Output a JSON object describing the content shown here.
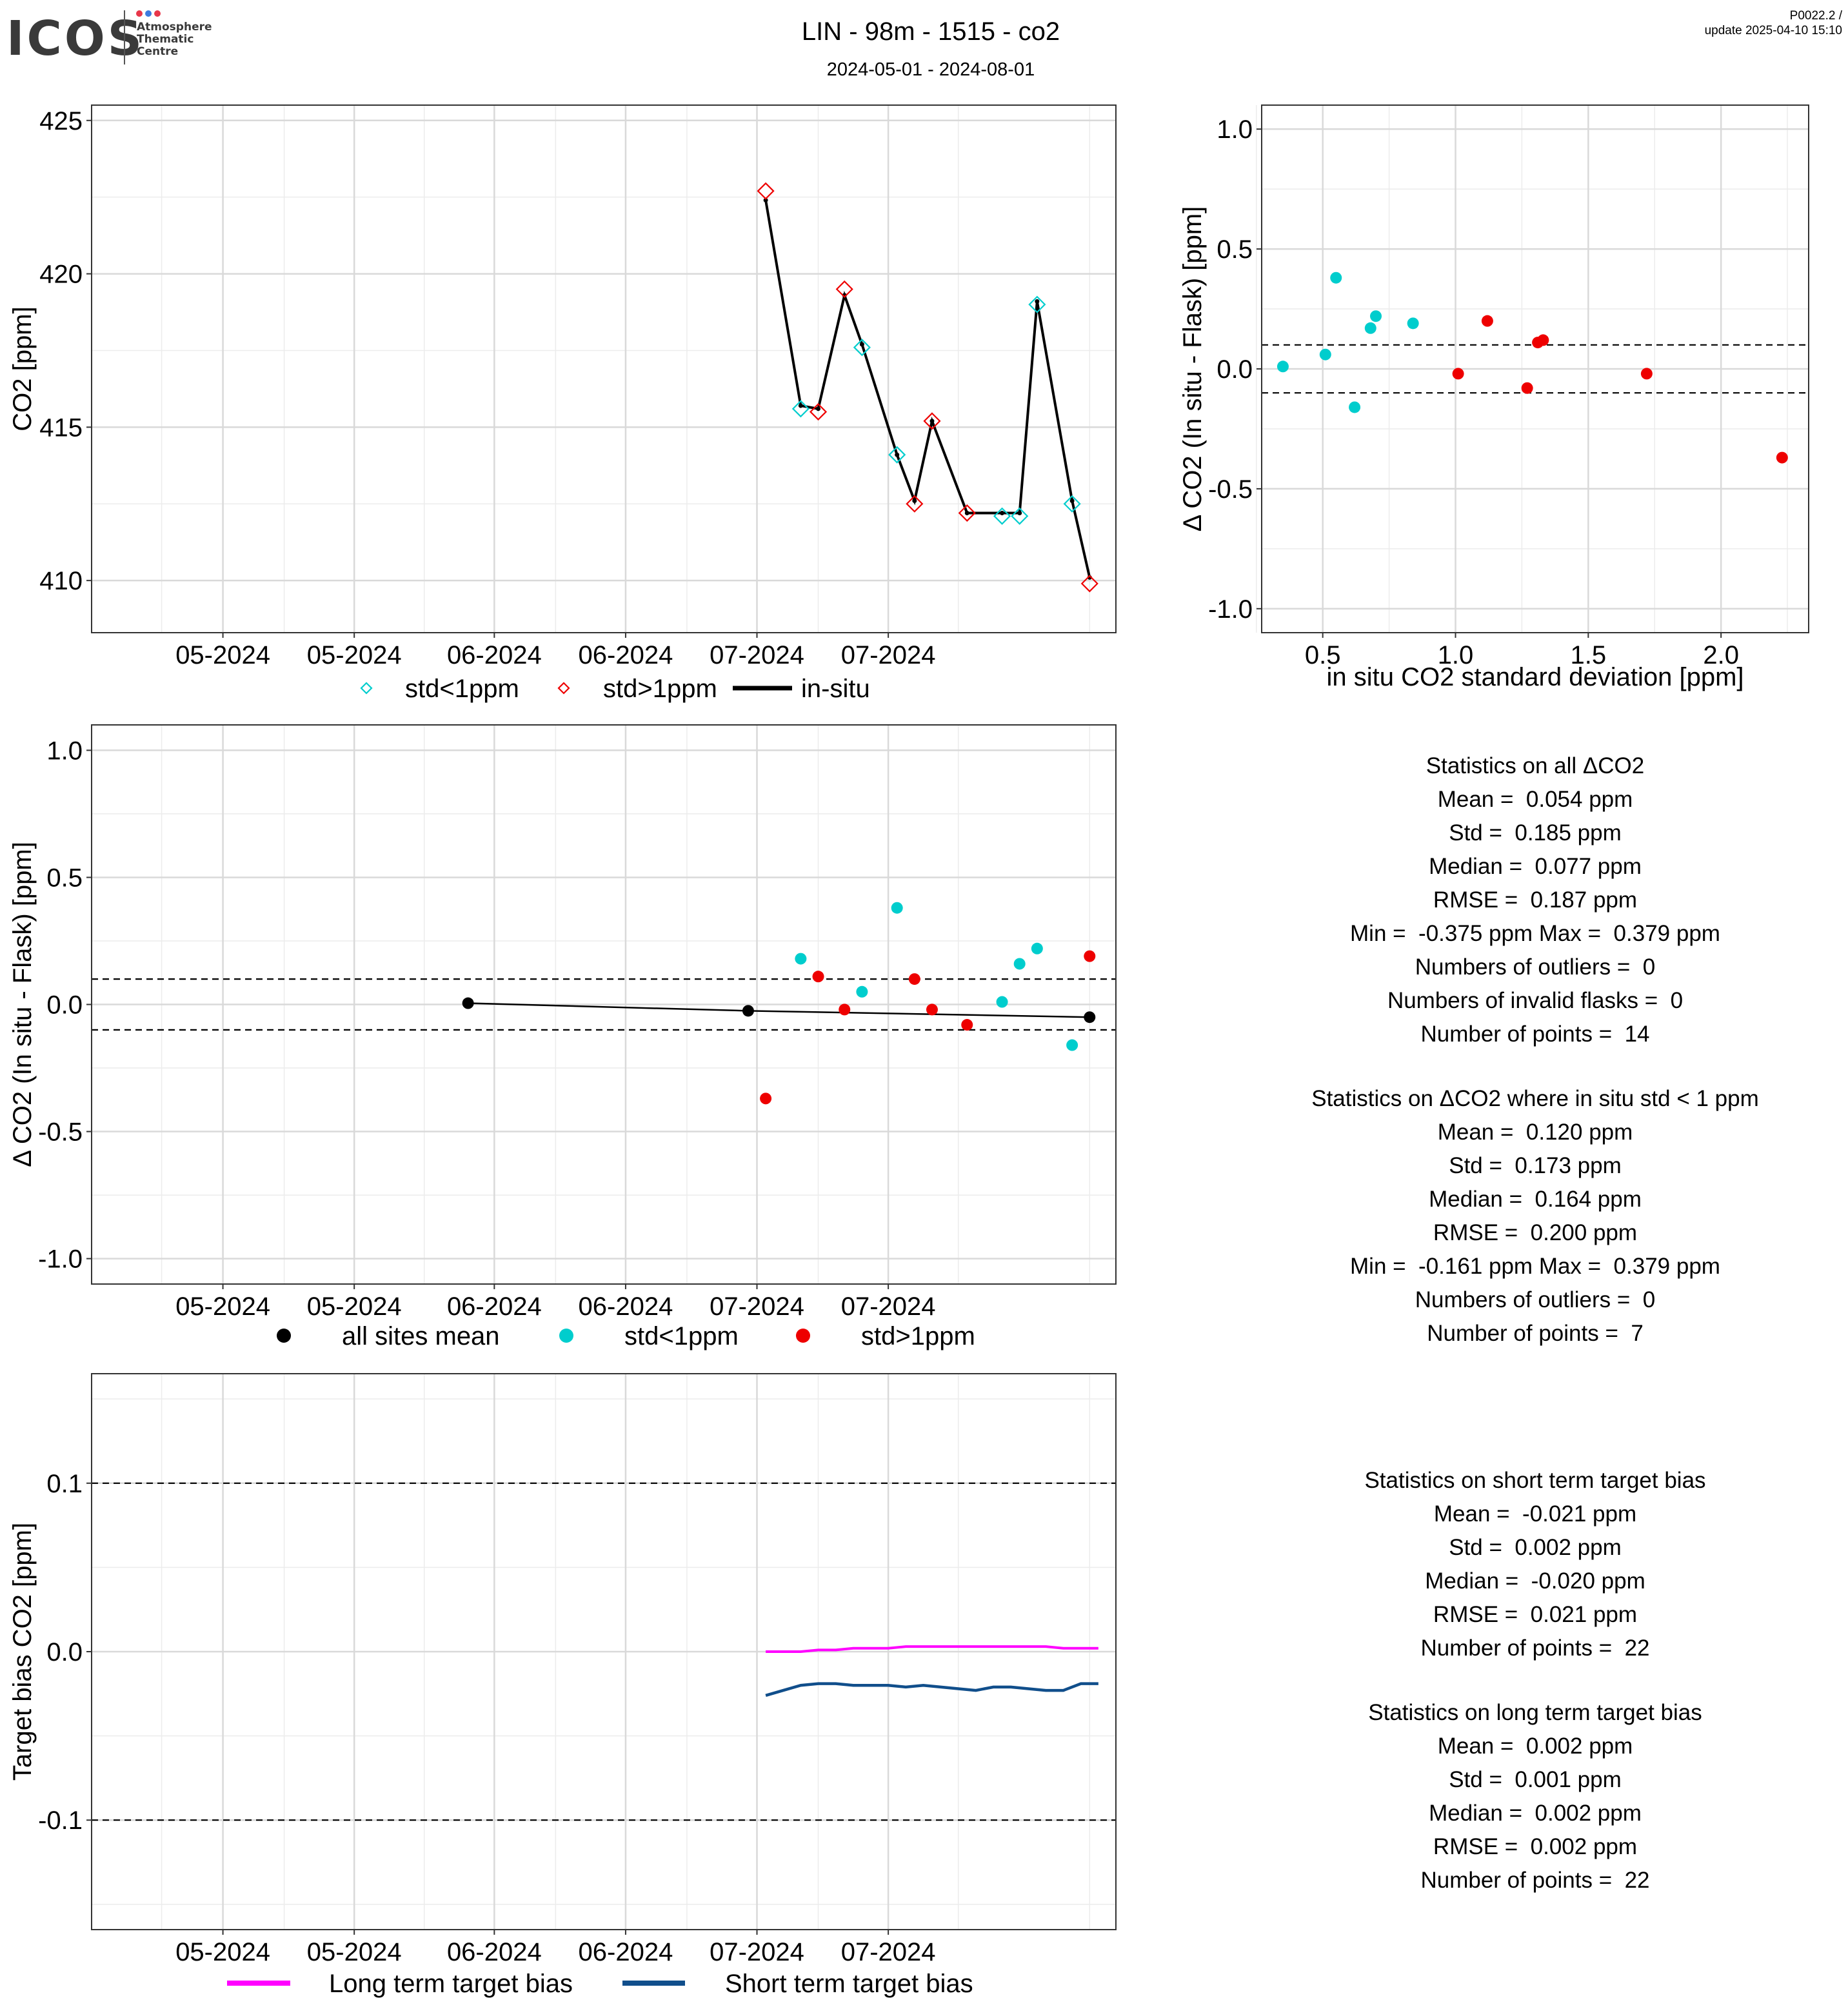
{
  "header": {
    "logo_text": "ICOS",
    "logo_sub": [
      "Atmosphere",
      "Thematic",
      "Centre"
    ],
    "logo_dot_colors": [
      "#e8374a",
      "#3d7be0",
      "#e8374a"
    ],
    "title": "LIN - 98m - 1515 - co2",
    "subtitle": "2024-05-01 - 2024-08-01",
    "version": "P0022.2 /",
    "update": "update  2025-04-10 15:10"
  },
  "colors": {
    "cyan": "#00CDCD",
    "red": "#EE0000",
    "black": "#000000",
    "magenta": "#FF00FF",
    "navy": "#104E8B",
    "grid_major": "#d9d9d9",
    "grid_minor": "#ececec"
  },
  "time_axis": {
    "tick_labels": [
      "05-2024",
      "05-2024",
      "06-2024",
      "06-2024",
      "07-2024",
      "07-2024"
    ]
  },
  "chart_data": [
    {
      "id": "co2-timeseries",
      "type": "line",
      "xlabel": "",
      "ylabel": "CO2 [ppm]",
      "ylim": [
        408.3,
        425.5
      ],
      "y_ticks": [
        410,
        415,
        420,
        425
      ],
      "y_tick_labels": [
        "410",
        "415",
        "420",
        "425"
      ],
      "grid": true,
      "legend": [
        "std<1ppm",
        "std>1ppm",
        "in-situ"
      ],
      "legend_position": "bottom",
      "series": [
        {
          "name": "in-situ",
          "x": [
            "2024-07-02",
            "2024-07-06",
            "2024-07-08",
            "2024-07-11",
            "2024-07-13",
            "2024-07-17",
            "2024-07-19",
            "2024-07-21",
            "2024-07-25",
            "2024-07-29",
            "2024-07-31",
            "2024-08-02",
            "2024-08-06",
            "2024-08-08"
          ],
          "values": [
            422.4,
            415.7,
            415.6,
            419.3,
            417.7,
            414.1,
            412.6,
            415.2,
            412.2,
            412.2,
            412.2,
            419.1,
            412.6,
            410.1
          ]
        },
        {
          "name": "std<1ppm",
          "x": [
            "2024-07-06",
            "2024-07-13",
            "2024-07-17",
            "2024-07-29",
            "2024-07-31",
            "2024-08-02",
            "2024-08-06"
          ],
          "values": [
            415.6,
            417.6,
            414.1,
            412.1,
            412.1,
            419.0,
            412.5
          ]
        },
        {
          "name": "std>1ppm",
          "x": [
            "2024-07-02",
            "2024-07-08",
            "2024-07-11",
            "2024-07-19",
            "2024-07-21",
            "2024-07-25",
            "2024-08-08"
          ],
          "values": [
            422.7,
            415.5,
            419.5,
            412.5,
            415.2,
            412.2,
            409.9
          ]
        }
      ]
    },
    {
      "id": "delta-vs-std",
      "type": "scatter",
      "xlabel": "in situ CO2 standard deviation [ppm]",
      "ylabel": "Δ CO2 (In situ - Flask) [ppm]",
      "xlim": [
        0.27,
        2.33
      ],
      "ylim": [
        -1.1,
        1.1
      ],
      "x_ticks": [
        0.5,
        1.0,
        1.5,
        2.0
      ],
      "x_tick_labels": [
        "0.5",
        "1.0",
        "1.5",
        "2.0"
      ],
      "y_ticks": [
        -1.0,
        -0.5,
        0.0,
        0.5,
        1.0
      ],
      "y_tick_labels": [
        "-1.0",
        "-0.5",
        "0.0",
        "0.5",
        "1.0"
      ],
      "reference_lines": [
        0.1,
        -0.1
      ],
      "grid": true,
      "series": [
        {
          "name": "std<1ppm",
          "x": [
            0.35,
            0.51,
            0.55,
            0.62,
            0.68,
            0.7,
            0.84
          ],
          "values": [
            0.01,
            0.06,
            0.38,
            -0.16,
            0.17,
            0.22,
            0.19
          ]
        },
        {
          "name": "std>1ppm",
          "x": [
            1.01,
            1.12,
            1.27,
            1.31,
            1.33,
            1.72,
            2.23
          ],
          "values": [
            -0.02,
            0.2,
            -0.08,
            0.11,
            0.12,
            -0.02,
            -0.37
          ]
        }
      ]
    },
    {
      "id": "delta-timeseries",
      "type": "scatter",
      "xlabel": "",
      "ylabel": "Δ CO2 (In situ - Flask) [ppm]",
      "ylim": [
        -1.1,
        1.1
      ],
      "y_ticks": [
        -1.0,
        -0.5,
        0.0,
        0.5,
        1.0
      ],
      "y_tick_labels": [
        "-1.0",
        "-0.5",
        "0.0",
        "0.5",
        "1.0"
      ],
      "reference_lines": [
        0.1,
        -0.1
      ],
      "grid": true,
      "legend": [
        "all sites mean",
        "std<1ppm",
        "std>1ppm"
      ],
      "legend_position": "bottom",
      "series": [
        {
          "name": "all sites mean",
          "x": [
            "2024-05-29",
            "2024-06-30",
            "2024-08-08"
          ],
          "values": [
            0.005,
            -0.025,
            -0.05
          ]
        },
        {
          "name": "std<1ppm",
          "x": [
            "2024-07-06",
            "2024-07-13",
            "2024-07-17",
            "2024-07-29",
            "2024-07-31",
            "2024-08-02",
            "2024-08-06"
          ],
          "values": [
            0.18,
            0.05,
            0.38,
            0.01,
            0.16,
            0.22,
            -0.16
          ]
        },
        {
          "name": "std>1ppm",
          "x": [
            "2024-07-02",
            "2024-07-08",
            "2024-07-11",
            "2024-07-19",
            "2024-07-21",
            "2024-07-25",
            "2024-08-08"
          ],
          "values": [
            -0.37,
            0.11,
            -0.02,
            0.1,
            -0.02,
            -0.08,
            0.19
          ]
        }
      ]
    },
    {
      "id": "target-bias",
      "type": "line",
      "xlabel": "",
      "ylabel": "Target bias CO2 [ppm]",
      "ylim": [
        -0.165,
        0.165
      ],
      "y_ticks": [
        -0.1,
        0.0,
        0.1
      ],
      "y_tick_labels": [
        "-0.1",
        "0.0",
        "0.1"
      ],
      "reference_lines": [
        0.1,
        -0.1
      ],
      "grid": true,
      "legend": [
        "Long term target bias",
        "Short term target bias"
      ],
      "legend_position": "bottom",
      "series": [
        {
          "name": "Long term target bias",
          "x": [
            "2024-07-02",
            "2024-07-04",
            "2024-07-06",
            "2024-07-08",
            "2024-07-10",
            "2024-07-12",
            "2024-07-14",
            "2024-07-16",
            "2024-07-18",
            "2024-07-20",
            "2024-07-22",
            "2024-07-24",
            "2024-07-26",
            "2024-07-28",
            "2024-07-30",
            "2024-08-01",
            "2024-08-03",
            "2024-08-05",
            "2024-08-07",
            "2024-08-09"
          ],
          "values": [
            0.0,
            0.0,
            0.0,
            0.001,
            0.001,
            0.002,
            0.002,
            0.002,
            0.003,
            0.003,
            0.003,
            0.003,
            0.003,
            0.003,
            0.003,
            0.003,
            0.003,
            0.002,
            0.002,
            0.002
          ]
        },
        {
          "name": "Short term target bias",
          "x": [
            "2024-07-02",
            "2024-07-04",
            "2024-07-06",
            "2024-07-08",
            "2024-07-10",
            "2024-07-12",
            "2024-07-14",
            "2024-07-16",
            "2024-07-18",
            "2024-07-20",
            "2024-07-22",
            "2024-07-24",
            "2024-07-26",
            "2024-07-28",
            "2024-07-30",
            "2024-08-01",
            "2024-08-03",
            "2024-08-05",
            "2024-08-07",
            "2024-08-09"
          ],
          "values": [
            -0.026,
            -0.023,
            -0.02,
            -0.019,
            -0.019,
            -0.02,
            -0.02,
            -0.02,
            -0.021,
            -0.02,
            -0.021,
            -0.022,
            -0.023,
            -0.021,
            -0.021,
            -0.022,
            -0.023,
            -0.023,
            -0.019,
            -0.019
          ]
        }
      ]
    }
  ],
  "stats_all": [
    "Statistics on all ΔCO2",
    "Mean =  0.054 ppm",
    "Std =  0.185 ppm",
    "Median =  0.077 ppm",
    "RMSE =  0.187 ppm",
    "Min =  -0.375 ppm Max =  0.379 ppm",
    "Numbers of outliers =  0",
    "Numbers of invalid flasks =  0",
    "Number of points =  14"
  ],
  "stats_std1": [
    "Statistics on ΔCO2 where in situ std < 1 ppm",
    "Mean =  0.120 ppm",
    "Std =  0.173 ppm",
    "Median =  0.164 ppm",
    "RMSE =  0.200 ppm",
    "Min =  -0.161 ppm Max =  0.379 ppm",
    "Numbers of outliers =  0",
    "Number of points =  7"
  ],
  "stats_short": [
    "Statistics on short term target bias",
    "Mean =  -0.021 ppm",
    "Std =  0.002 ppm",
    "Median =  -0.020 ppm",
    "RMSE =  0.021 ppm",
    "Number of points =  22"
  ],
  "stats_long": [
    "Statistics on long term target bias",
    "Mean =  0.002 ppm",
    "Std =  0.001 ppm",
    "Median =  0.002 ppm",
    "RMSE =  0.002 ppm",
    "Number of points =  22"
  ]
}
